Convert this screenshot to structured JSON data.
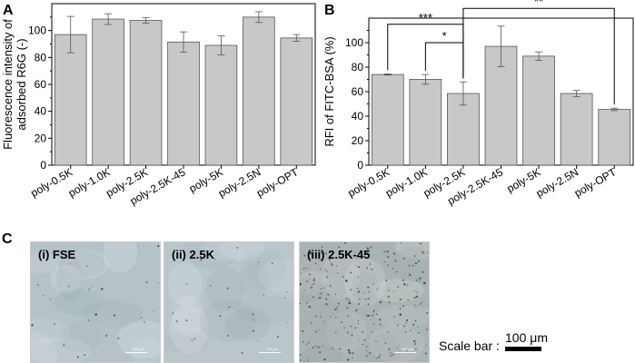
{
  "panels": {
    "a": "A",
    "b": "B",
    "c": "C"
  },
  "chart_data": [
    {
      "type": "bar",
      "panel": "A",
      "ylabel_lines": [
        "Fluorescence intensity of",
        "adsorbed R6G (-)"
      ],
      "categories": [
        "poly-0.5K",
        "poly-1.0K",
        "poly-2.5K",
        "poly-2.5K-45",
        "poly-5K",
        "poly-2.5N",
        "poly-OPT"
      ],
      "values": [
        97,
        108.5,
        107.5,
        91.5,
        89,
        110,
        94.5
      ],
      "errors": [
        13.5,
        4,
        2,
        7.5,
        7,
        4,
        2.5
      ],
      "ylim": [
        0,
        120
      ],
      "yticks": [
        0,
        20,
        40,
        60,
        80,
        100
      ],
      "bar_color": "#c8c8c8"
    },
    {
      "type": "bar",
      "panel": "B",
      "ylabel": "RFI of FITC-BSA (%)",
      "categories": [
        "poly-0.5K",
        "poly-1.0K",
        "poly-2.5K",
        "poly-2.5K-45",
        "poly-5K",
        "poly-2.5N",
        "poly-OPT"
      ],
      "values": [
        74,
        70,
        58.5,
        97,
        89,
        58.5,
        45.5
      ],
      "errors": [
        0.5,
        4,
        9.5,
        16.5,
        3.5,
        2.5,
        1
      ],
      "ylim": [
        0,
        120
      ],
      "yticks": [
        0,
        20,
        40,
        60,
        80,
        100
      ],
      "bar_color": "#c8c8c8",
      "significance": [
        {
          "from": 0,
          "to": 2,
          "label": "***",
          "y": 115
        },
        {
          "from": 1,
          "to": 2,
          "label": "*",
          "y": 100
        },
        {
          "from": 2,
          "to": 6,
          "label": "**",
          "y": 128
        }
      ]
    }
  ],
  "images": [
    {
      "label": "(i) FSE",
      "scale_text": "100 μm",
      "tone": "#b5c3c8",
      "particles": "sparse"
    },
    {
      "label": "(ii) 2.5K",
      "scale_text": "100 μm",
      "tone": "#b9c6cb",
      "particles": "sparse"
    },
    {
      "label": "(iii) 2.5K-45",
      "scale_text": "100 μm",
      "tone": "#aab3b4",
      "particles": "dense"
    }
  ],
  "scale_bar": {
    "prefix": "Scale bar :",
    "value": "100 μm"
  }
}
